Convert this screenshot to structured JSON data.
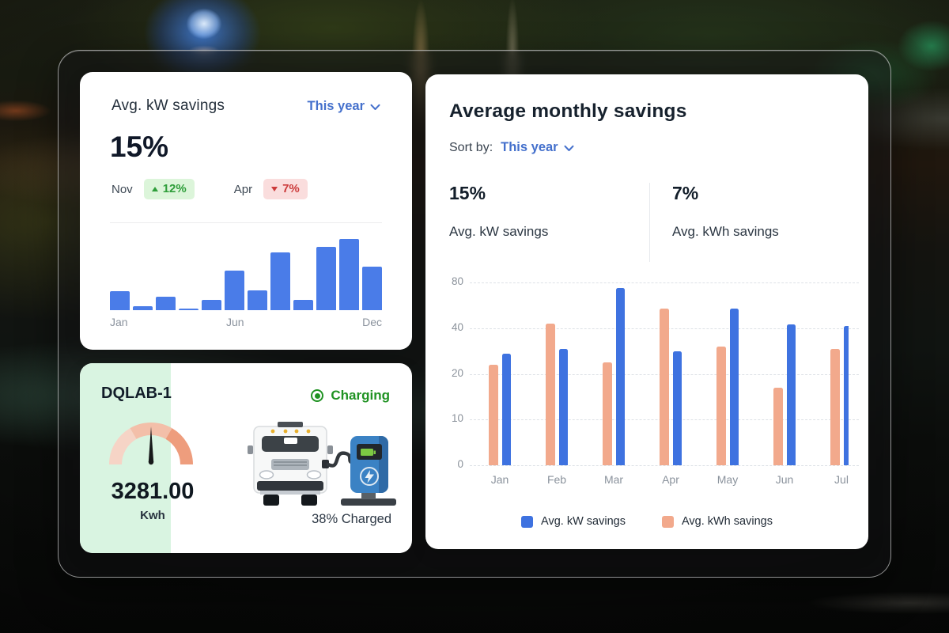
{
  "kw_card": {
    "title": "Avg. kW savings",
    "period": "This year",
    "value": "15%",
    "highlights": [
      {
        "month": "Nov",
        "change": "12%",
        "direction": "up"
      },
      {
        "month": "Apr",
        "change": "7%",
        "direction": "down"
      }
    ]
  },
  "charger_card": {
    "name": "DQLAB-1",
    "status": "Charging",
    "meter_value": "3281.00",
    "meter_unit": "Kwh",
    "charge_level": "38% Charged"
  },
  "monthly_card": {
    "title": "Average monthly savings",
    "sort_by_label": "Sort by:",
    "period": "This year",
    "stats": [
      {
        "value": "15%",
        "label": "Avg. kW savings"
      },
      {
        "value": "7%",
        "label": "Avg. kWh savings"
      }
    ]
  },
  "chart_data": [
    {
      "type": "bar",
      "title": "Avg. kW savings sparkline (12 months)",
      "categories": [
        "Jan",
        "Feb",
        "Mar",
        "Apr",
        "May",
        "Jun",
        "Jul",
        "Aug",
        "Sep",
        "Oct",
        "Nov",
        "Dec"
      ],
      "values": [
        27,
        6,
        19,
        2,
        14,
        56,
        28,
        81,
        14,
        89,
        100,
        61
      ],
      "visible_x_labels": [
        "Jan",
        "Jun",
        "Dec"
      ],
      "ylim": [
        0,
        100
      ],
      "grid": false,
      "bar_color": "#4a7ce8"
    },
    {
      "type": "bar",
      "title": "Average monthly savings",
      "categories": [
        "Jan",
        "Feb",
        "Mar",
        "Apr",
        "May",
        "Jun",
        "Jul"
      ],
      "series": [
        {
          "name": "Avg. kWh savings",
          "color": "#f2a98c",
          "values": [
            24,
            44,
            25,
            57,
            32,
            17,
            31
          ]
        },
        {
          "name": "Avg. kW savings",
          "color": "#3e72e0",
          "values": [
            29,
            31,
            75,
            30,
            57,
            43,
            42
          ]
        }
      ],
      "y_ticks": [
        0,
        10,
        20,
        40,
        80
      ],
      "y_scale": "ticks-evenly-spaced",
      "grid": "dashed-horizontal",
      "legend_position": "bottom-center",
      "legend": [
        {
          "label": "Avg. kW savings",
          "color": "#3e72e0"
        },
        {
          "label": "Avg. kWh savings",
          "color": "#f2a98c"
        }
      ]
    }
  ],
  "colors": {
    "accent_blue": "#4470cc",
    "positive_green": "#2e9e3a",
    "positive_bg": "#dcf5da",
    "negative_red": "#cc3b3b",
    "negative_bg": "#fadddd",
    "charging_green": "#1f9222",
    "mint_bg": "#d9f4e1",
    "gauge_segments": [
      "#f6d4c6",
      "#f3bfa9",
      "#ee9d7d"
    ],
    "needle": "#17191a"
  }
}
